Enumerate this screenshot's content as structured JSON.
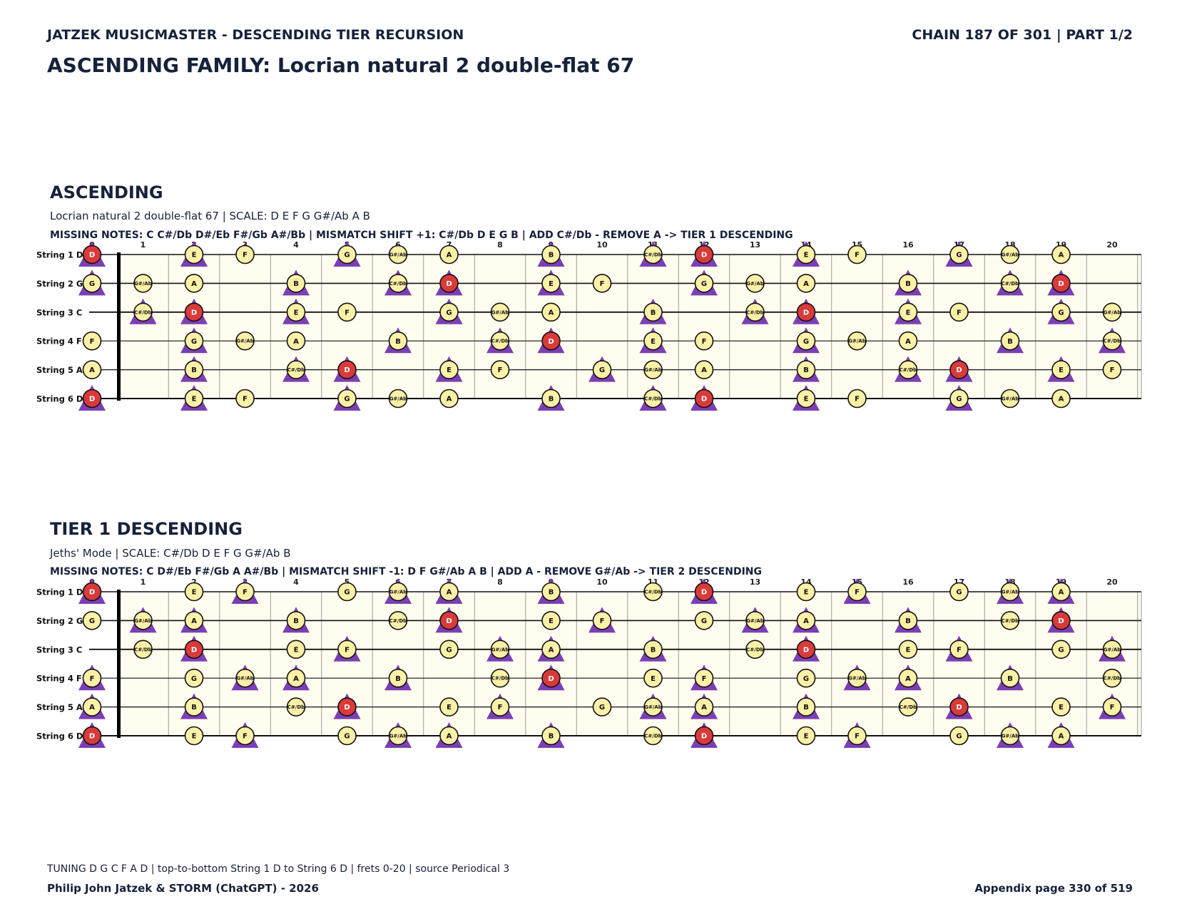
{
  "header": {
    "left": "JATZEK MUSICMASTER - DESCENDING TIER RECURSION",
    "right": "CHAIN 187 OF 301  |  PART 1/2",
    "title": "ASCENDING FAMILY: Locrian natural 2 double-flat 67"
  },
  "string_labels": [
    "String 1 D",
    "String 2 G",
    "String 3 C",
    "String 4 F",
    "String 5 A",
    "String 6 D"
  ],
  "fret_numbers": [
    "0",
    "1",
    "2",
    "3",
    "4",
    "5",
    "6",
    "7",
    "8",
    "9",
    "10",
    "11",
    "12",
    "13",
    "14",
    "15",
    "16",
    "17",
    "18",
    "19",
    "20"
  ],
  "colors": {
    "note_fill": "#fdf1a8",
    "root_fill": "#d93a3a",
    "triangle": "#7b3fb3",
    "board_bg": "#fffdf0",
    "text": "#16213a"
  },
  "legend": {
    "circle": "scale note",
    "red-circle": "root note D",
    "triangle": "mismatch / changed note"
  },
  "sections": [
    {
      "title": "ASCENDING",
      "subtitle": "Locrian natural 2 double-flat 67  |  SCALE: D E F G G#/Ab A B",
      "missing": "MISSING NOTES: C C#/Db D#/Eb F#/Gb A#/Bb  |  MISMATCH SHIFT +1: C#/Db D E G B  |  ADD C#/Db - REMOVE A -> TIER 1 DESCENDING",
      "strings": [
        [
          {
            "f": 0,
            "n": "D",
            "t": 1
          },
          {
            "f": 2,
            "n": "E",
            "t": 1
          },
          {
            "f": 3,
            "n": "F"
          },
          {
            "f": 5,
            "n": "G",
            "t": 1
          },
          {
            "f": 6,
            "n": "G#/Ab"
          },
          {
            "f": 7,
            "n": "A"
          },
          {
            "f": 9,
            "n": "B",
            "t": 1
          },
          {
            "f": 11,
            "n": "C#/Db",
            "t": 1
          },
          {
            "f": 12,
            "n": "D",
            "t": 1
          },
          {
            "f": 14,
            "n": "E",
            "t": 1
          },
          {
            "f": 15,
            "n": "F"
          },
          {
            "f": 17,
            "n": "G",
            "t": 1
          },
          {
            "f": 18,
            "n": "G#/Ab"
          },
          {
            "f": 19,
            "n": "A"
          }
        ],
        [
          {
            "f": 0,
            "n": "G",
            "t": 1
          },
          {
            "f": 1,
            "n": "G#/Ab"
          },
          {
            "f": 2,
            "n": "A"
          },
          {
            "f": 4,
            "n": "B",
            "t": 1
          },
          {
            "f": 6,
            "n": "C#/Db",
            "t": 1
          },
          {
            "f": 7,
            "n": "D",
            "t": 1
          },
          {
            "f": 9,
            "n": "E",
            "t": 1
          },
          {
            "f": 10,
            "n": "F"
          },
          {
            "f": 12,
            "n": "G",
            "t": 1
          },
          {
            "f": 13,
            "n": "G#/Ab"
          },
          {
            "f": 14,
            "n": "A"
          },
          {
            "f": 16,
            "n": "B",
            "t": 1
          },
          {
            "f": 18,
            "n": "C#/Db",
            "t": 1
          },
          {
            "f": 19,
            "n": "D",
            "t": 1
          }
        ],
        [
          {
            "f": 1,
            "n": "C#/Db",
            "t": 1
          },
          {
            "f": 2,
            "n": "D",
            "t": 1
          },
          {
            "f": 4,
            "n": "E",
            "t": 1
          },
          {
            "f": 5,
            "n": "F"
          },
          {
            "f": 7,
            "n": "G",
            "t": 1
          },
          {
            "f": 8,
            "n": "G#/Ab"
          },
          {
            "f": 9,
            "n": "A"
          },
          {
            "f": 11,
            "n": "B",
            "t": 1
          },
          {
            "f": 13,
            "n": "C#/Db",
            "t": 1
          },
          {
            "f": 14,
            "n": "D",
            "t": 1
          },
          {
            "f": 16,
            "n": "E",
            "t": 1
          },
          {
            "f": 17,
            "n": "F"
          },
          {
            "f": 19,
            "n": "G",
            "t": 1
          },
          {
            "f": 20,
            "n": "G#/Ab"
          }
        ],
        [
          {
            "f": 0,
            "n": "F"
          },
          {
            "f": 2,
            "n": "G",
            "t": 1
          },
          {
            "f": 3,
            "n": "G#/Ab"
          },
          {
            "f": 4,
            "n": "A"
          },
          {
            "f": 6,
            "n": "B",
            "t": 1
          },
          {
            "f": 8,
            "n": "C#/Db",
            "t": 1
          },
          {
            "f": 9,
            "n": "D",
            "t": 1
          },
          {
            "f": 11,
            "n": "E",
            "t": 1
          },
          {
            "f": 12,
            "n": "F"
          },
          {
            "f": 14,
            "n": "G",
            "t": 1
          },
          {
            "f": 15,
            "n": "G#/Ab"
          },
          {
            "f": 16,
            "n": "A"
          },
          {
            "f": 18,
            "n": "B",
            "t": 1
          },
          {
            "f": 20,
            "n": "C#/Db",
            "t": 1
          }
        ],
        [
          {
            "f": 0,
            "n": "A"
          },
          {
            "f": 2,
            "n": "B",
            "t": 1
          },
          {
            "f": 4,
            "n": "C#/Db",
            "t": 1
          },
          {
            "f": 5,
            "n": "D",
            "t": 1
          },
          {
            "f": 7,
            "n": "E",
            "t": 1
          },
          {
            "f": 8,
            "n": "F"
          },
          {
            "f": 10,
            "n": "G",
            "t": 1
          },
          {
            "f": 11,
            "n": "G#/Ab"
          },
          {
            "f": 12,
            "n": "A"
          },
          {
            "f": 14,
            "n": "B",
            "t": 1
          },
          {
            "f": 16,
            "n": "C#/Db",
            "t": 1
          },
          {
            "f": 17,
            "n": "D",
            "t": 1
          },
          {
            "f": 19,
            "n": "E",
            "t": 1
          },
          {
            "f": 20,
            "n": "F"
          }
        ],
        [
          {
            "f": 0,
            "n": "D",
            "t": 1
          },
          {
            "f": 2,
            "n": "E",
            "t": 1
          },
          {
            "f": 3,
            "n": "F"
          },
          {
            "f": 5,
            "n": "G",
            "t": 1
          },
          {
            "f": 6,
            "n": "G#/Ab"
          },
          {
            "f": 7,
            "n": "A"
          },
          {
            "f": 9,
            "n": "B",
            "t": 1
          },
          {
            "f": 11,
            "n": "C#/Db",
            "t": 1
          },
          {
            "f": 12,
            "n": "D",
            "t": 1
          },
          {
            "f": 14,
            "n": "E",
            "t": 1
          },
          {
            "f": 15,
            "n": "F"
          },
          {
            "f": 17,
            "n": "G",
            "t": 1
          },
          {
            "f": 18,
            "n": "G#/Ab"
          },
          {
            "f": 19,
            "n": "A"
          }
        ]
      ]
    },
    {
      "title": "TIER 1 DESCENDING",
      "subtitle": "Jeths' Mode  |  SCALE: C#/Db D E F G G#/Ab B",
      "missing": "MISSING NOTES: C D#/Eb F#/Gb A A#/Bb  |  MISMATCH SHIFT -1: D F G#/Ab A B  |  ADD A - REMOVE G#/Ab -> TIER 2 DESCENDING",
      "strings": [
        [
          {
            "f": 0,
            "n": "D",
            "t": 1
          },
          {
            "f": 2,
            "n": "E"
          },
          {
            "f": 3,
            "n": "F",
            "t": 1
          },
          {
            "f": 5,
            "n": "G"
          },
          {
            "f": 6,
            "n": "G#/Ab",
            "t": 1
          },
          {
            "f": 7,
            "n": "A",
            "t": 1
          },
          {
            "f": 9,
            "n": "B",
            "t": 1
          },
          {
            "f": 11,
            "n": "C#/Db"
          },
          {
            "f": 12,
            "n": "D",
            "t": 1
          },
          {
            "f": 14,
            "n": "E"
          },
          {
            "f": 15,
            "n": "F",
            "t": 1
          },
          {
            "f": 17,
            "n": "G"
          },
          {
            "f": 18,
            "n": "G#/Ab",
            "t": 1
          },
          {
            "f": 19,
            "n": "A",
            "t": 1
          }
        ],
        [
          {
            "f": 0,
            "n": "G"
          },
          {
            "f": 1,
            "n": "G#/Ab",
            "t": 1
          },
          {
            "f": 2,
            "n": "A",
            "t": 1
          },
          {
            "f": 4,
            "n": "B",
            "t": 1
          },
          {
            "f": 6,
            "n": "C#/Db"
          },
          {
            "f": 7,
            "n": "D",
            "t": 1
          },
          {
            "f": 9,
            "n": "E"
          },
          {
            "f": 10,
            "n": "F",
            "t": 1
          },
          {
            "f": 12,
            "n": "G"
          },
          {
            "f": 13,
            "n": "G#/Ab",
            "t": 1
          },
          {
            "f": 14,
            "n": "A",
            "t": 1
          },
          {
            "f": 16,
            "n": "B",
            "t": 1
          },
          {
            "f": 18,
            "n": "C#/Db"
          },
          {
            "f": 19,
            "n": "D",
            "t": 1
          }
        ],
        [
          {
            "f": 1,
            "n": "C#/Db"
          },
          {
            "f": 2,
            "n": "D",
            "t": 1
          },
          {
            "f": 4,
            "n": "E"
          },
          {
            "f": 5,
            "n": "F",
            "t": 1
          },
          {
            "f": 7,
            "n": "G"
          },
          {
            "f": 8,
            "n": "G#/Ab",
            "t": 1
          },
          {
            "f": 9,
            "n": "A",
            "t": 1
          },
          {
            "f": 11,
            "n": "B",
            "t": 1
          },
          {
            "f": 13,
            "n": "C#/Db"
          },
          {
            "f": 14,
            "n": "D",
            "t": 1
          },
          {
            "f": 16,
            "n": "E"
          },
          {
            "f": 17,
            "n": "F",
            "t": 1
          },
          {
            "f": 19,
            "n": "G"
          },
          {
            "f": 20,
            "n": "G#/Ab",
            "t": 1
          }
        ],
        [
          {
            "f": 0,
            "n": "F",
            "t": 1
          },
          {
            "f": 2,
            "n": "G"
          },
          {
            "f": 3,
            "n": "G#/Ab",
            "t": 1
          },
          {
            "f": 4,
            "n": "A",
            "t": 1
          },
          {
            "f": 6,
            "n": "B",
            "t": 1
          },
          {
            "f": 8,
            "n": "C#/Db"
          },
          {
            "f": 9,
            "n": "D",
            "t": 1
          },
          {
            "f": 11,
            "n": "E"
          },
          {
            "f": 12,
            "n": "F",
            "t": 1
          },
          {
            "f": 14,
            "n": "G"
          },
          {
            "f": 15,
            "n": "G#/Ab",
            "t": 1
          },
          {
            "f": 16,
            "n": "A",
            "t": 1
          },
          {
            "f": 18,
            "n": "B",
            "t": 1
          },
          {
            "f": 20,
            "n": "C#/Db"
          }
        ],
        [
          {
            "f": 0,
            "n": "A",
            "t": 1
          },
          {
            "f": 2,
            "n": "B",
            "t": 1
          },
          {
            "f": 4,
            "n": "C#/Db"
          },
          {
            "f": 5,
            "n": "D",
            "t": 1
          },
          {
            "f": 7,
            "n": "E"
          },
          {
            "f": 8,
            "n": "F",
            "t": 1
          },
          {
            "f": 10,
            "n": "G"
          },
          {
            "f": 11,
            "n": "G#/Ab",
            "t": 1
          },
          {
            "f": 12,
            "n": "A",
            "t": 1
          },
          {
            "f": 14,
            "n": "B",
            "t": 1
          },
          {
            "f": 16,
            "n": "C#/Db"
          },
          {
            "f": 17,
            "n": "D",
            "t": 1
          },
          {
            "f": 19,
            "n": "E"
          },
          {
            "f": 20,
            "n": "F",
            "t": 1
          }
        ],
        [
          {
            "f": 0,
            "n": "D",
            "t": 1
          },
          {
            "f": 2,
            "n": "E"
          },
          {
            "f": 3,
            "n": "F",
            "t": 1
          },
          {
            "f": 5,
            "n": "G"
          },
          {
            "f": 6,
            "n": "G#/Ab",
            "t": 1
          },
          {
            "f": 7,
            "n": "A",
            "t": 1
          },
          {
            "f": 9,
            "n": "B",
            "t": 1
          },
          {
            "f": 11,
            "n": "C#/Db"
          },
          {
            "f": 12,
            "n": "D",
            "t": 1
          },
          {
            "f": 14,
            "n": "E"
          },
          {
            "f": 15,
            "n": "F",
            "t": 1
          },
          {
            "f": 17,
            "n": "G"
          },
          {
            "f": 18,
            "n": "G#/Ab",
            "t": 1
          },
          {
            "f": 19,
            "n": "A",
            "t": 1
          }
        ]
      ]
    }
  ],
  "footer": {
    "tuning": "TUNING D G C F A D | top-to-bottom String 1 D to String 6 D | frets 0-20 | source Periodical 3",
    "authors": "Philip John Jatzek & STORM (ChatGPT) - 2026",
    "page": "Appendix page 330 of 519"
  }
}
